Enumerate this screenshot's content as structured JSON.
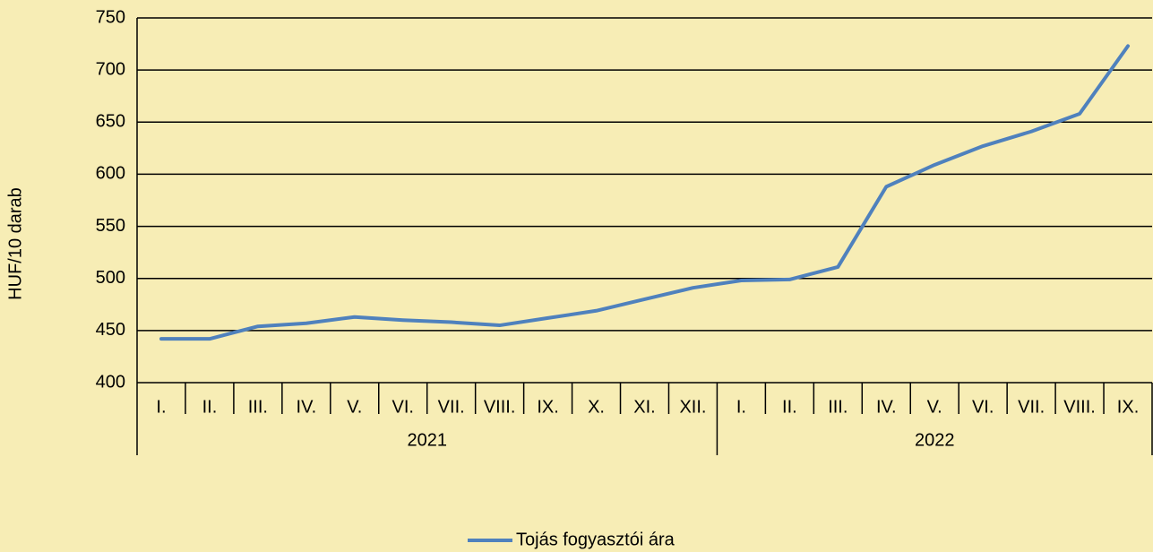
{
  "chart_data": {
    "type": "line",
    "y_label": "HUF/10 darab",
    "category_groups": [
      {
        "name": "2021",
        "categories": [
          "I.",
          "II.",
          "III.",
          "IV.",
          "V.",
          "VI.",
          "VII.",
          "VIII.",
          "IX.",
          "X.",
          "XI.",
          "XII."
        ]
      },
      {
        "name": "2022",
        "categories": [
          "I.",
          "II.",
          "III.",
          "IV.",
          "V.",
          "VI.",
          "VII.",
          "VIII.",
          "IX."
        ]
      }
    ],
    "series": [
      {
        "name": "Tojás fogyasztói ára",
        "color": "#4f81bd",
        "values": [
          442,
          442,
          454,
          457,
          463,
          460,
          458,
          455,
          462,
          469,
          480,
          491,
          498,
          499,
          511,
          588,
          609,
          627,
          641,
          658,
          723
        ]
      }
    ],
    "ylim": [
      400,
      750
    ],
    "yticks": [
      400,
      450,
      500,
      550,
      600,
      650,
      700,
      750
    ],
    "grid": true,
    "legend": "bottom"
  }
}
